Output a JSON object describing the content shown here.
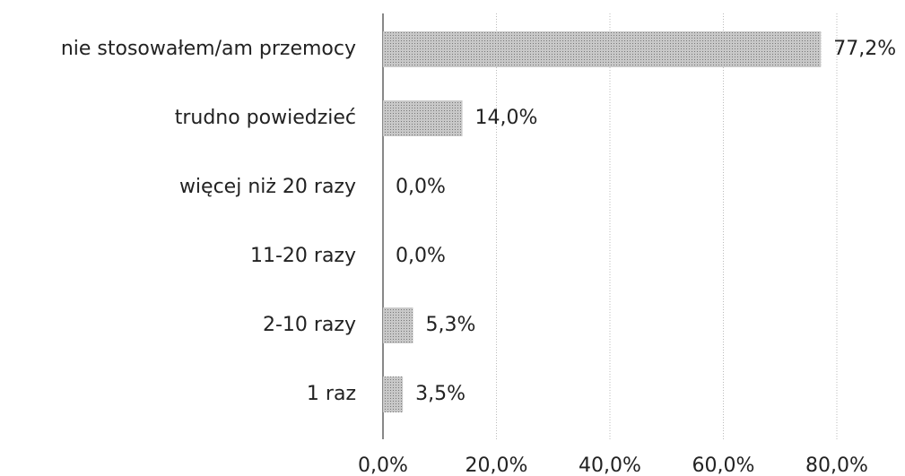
{
  "chart_data": {
    "type": "barh",
    "categories": [
      "nie stosowałem/am przemocy",
      "trudno powiedzieć",
      "więcej niż 20 razy",
      "11-20 razy",
      "2-10 razy",
      "1 raz"
    ],
    "values": [
      77.2,
      14.0,
      0.0,
      0.0,
      5.3,
      3.5
    ],
    "value_labels": [
      "77,2%",
      "14,0%",
      "0,0%",
      "0,0%",
      "5,3%",
      "3,5%"
    ],
    "color": "#b0b0b0",
    "xlim": [
      0,
      80
    ],
    "xticks": [
      {
        "value": 0,
        "label": "0,0%"
      },
      {
        "value": 20,
        "label": "20,0%"
      },
      {
        "value": 40,
        "label": "40,0%"
      },
      {
        "value": 60,
        "label": "60,0%"
      },
      {
        "value": 80,
        "label": "80,0%"
      }
    ],
    "grid": true
  }
}
